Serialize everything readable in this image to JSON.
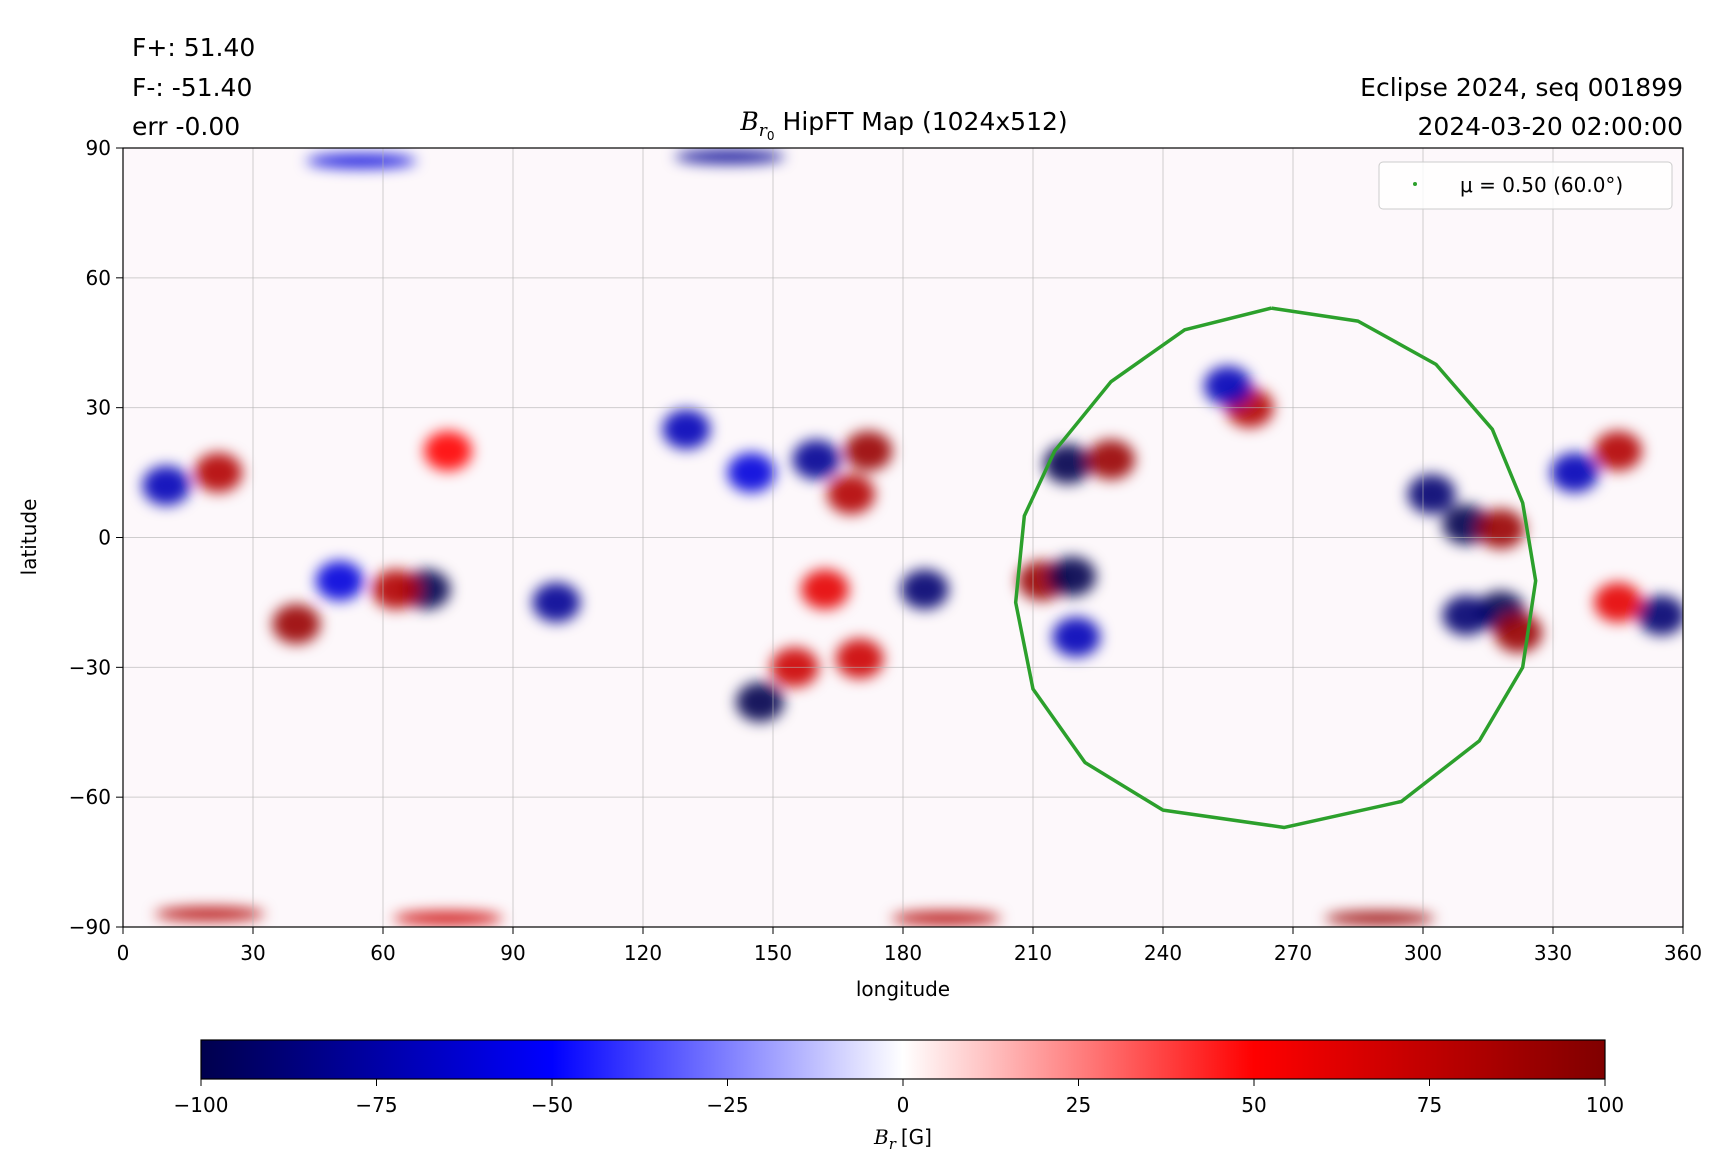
{
  "chart_data": {
    "type": "heatmap",
    "title": {
      "symbol": "B",
      "subscript": "r",
      "subsubscript": "0",
      "text": "HipFT Map (1024x512)"
    },
    "annotations_left": [
      "F+: 51.40",
      "F-: -51.40",
      "err -0.00"
    ],
    "annotations_right": [
      "Eclipse 2024, seq 001899",
      "2024-03-20 02:00:00"
    ],
    "xlabel": "longitude",
    "ylabel": "latitude",
    "xlim": [
      0,
      360
    ],
    "xticks": [
      0,
      30,
      60,
      90,
      120,
      150,
      180,
      210,
      240,
      270,
      300,
      330,
      360
    ],
    "ylim": [
      -90,
      90
    ],
    "yticks": [
      {
        "value": -90,
        "label": "−90"
      },
      {
        "value": -60,
        "label": "−60"
      },
      {
        "value": -30,
        "label": "−30"
      },
      0,
      30,
      60,
      90
    ],
    "grid": true,
    "points": {
      "x": [
        218,
        228,
        212,
        219,
        172,
        168,
        160,
        130,
        145,
        185,
        162,
        40,
        50,
        70,
        63,
        100,
        22,
        10,
        75,
        147,
        155,
        318,
        310,
        322,
        310,
        318,
        302,
        345,
        335,
        355,
        260,
        255,
        345,
        220,
        170,
        55,
        140,
        190,
        75,
        290,
        20
      ],
      "y": [
        17,
        18,
        -10,
        -9,
        20,
        10,
        18,
        25,
        15,
        -12,
        -12,
        -20,
        -10,
        -12,
        -12,
        -15,
        15,
        12,
        20,
        -38,
        -30,
        -17,
        -18,
        -22,
        3,
        2,
        10,
        20,
        15,
        -18,
        30,
        35,
        -15,
        -23,
        -28,
        87,
        88,
        -88,
        -88,
        -88,
        -87
      ],
      "values": [
        -100,
        90,
        90,
        -100,
        90,
        80,
        -80,
        -70,
        -60,
        -90,
        60,
        90,
        -60,
        -100,
        80,
        -80,
        80,
        -70,
        50,
        -100,
        70,
        -100,
        -90,
        90,
        -100,
        90,
        -90,
        80,
        -70,
        -90,
        80,
        -70,
        60,
        -70,
        70,
        -60,
        -80,
        80,
        70,
        90,
        80
      ]
    },
    "series": [
      {
        "name": "μ = 0.50 (60.0°)",
        "color": "#2ca02c",
        "x": [
          265,
          285,
          303,
          316,
          323,
          326,
          323,
          313,
          295,
          268,
          240,
          222,
          210,
          206,
          208,
          215,
          228,
          245,
          265
        ],
        "y": [
          53,
          50,
          40,
          25,
          8,
          -10,
          -30,
          -47,
          -61,
          -67,
          -63,
          -52,
          -35,
          -15,
          5,
          20,
          36,
          48,
          53
        ]
      }
    ],
    "legend": "upper right",
    "colorbar": {
      "label": {
        "symbol": "B",
        "subscript": "r",
        "unit": "[G]"
      },
      "lim": [
        -100,
        100
      ],
      "ticks": [
        {
          "value": -100,
          "label": "−100"
        },
        {
          "value": -75,
          "label": "−75"
        },
        {
          "value": -50,
          "label": "−50"
        },
        {
          "value": -25,
          "label": "−25"
        },
        0,
        25,
        50,
        75,
        100
      ]
    }
  }
}
